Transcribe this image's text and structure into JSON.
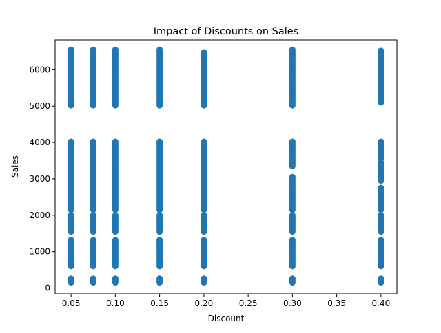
{
  "chart_data": {
    "type": "scatter",
    "title": "Impact of Discounts on Sales",
    "xlabel": "Discount",
    "ylabel": "Sales",
    "xlim": [
      0.032,
      0.418
    ],
    "ylim": [
      -160,
      6820
    ],
    "xticks": [
      0.05,
      0.1,
      0.15,
      0.2,
      0.25,
      0.3,
      0.35,
      0.4
    ],
    "xtick_labels": [
      "0.05",
      "0.10",
      "0.15",
      "0.20",
      "0.25",
      "0.30",
      "0.35",
      "0.40"
    ],
    "yticks": [
      0,
      1000,
      2000,
      3000,
      4000,
      5000,
      6000
    ],
    "ytick_labels": [
      "0",
      "1000",
      "2000",
      "3000",
      "4000",
      "5000",
      "6000"
    ],
    "grid": false,
    "marker_color": "#1f77b4",
    "series": [
      {
        "x_values": [
          0.05,
          0.075,
          0.1,
          0.15,
          0.2,
          0.3,
          0.4
        ],
        "sales_ranges": [
          [
            [
              150,
              260
            ],
            [
              600,
              1320
            ],
            [
              1550,
              2000
            ],
            [
              2150,
              4020
            ],
            [
              5020,
              6550
            ]
          ],
          [
            [
              150,
              260
            ],
            [
              600,
              1320
            ],
            [
              1550,
              2000
            ],
            [
              2150,
              4020
            ],
            [
              5020,
              6550
            ]
          ],
          [
            [
              150,
              260
            ],
            [
              600,
              1320
            ],
            [
              1550,
              2000
            ],
            [
              2150,
              4020
            ],
            [
              5020,
              6550
            ]
          ],
          [
            [
              150,
              260
            ],
            [
              600,
              1320
            ],
            [
              1550,
              2000
            ],
            [
              2150,
              4020
            ],
            [
              5020,
              6550
            ]
          ],
          [
            [
              150,
              260
            ],
            [
              600,
              1320
            ],
            [
              1550,
              2000
            ],
            [
              2150,
              4020
            ],
            [
              5020,
              6480
            ]
          ],
          [
            [
              150,
              260
            ],
            [
              600,
              1320
            ],
            [
              1550,
              2000
            ],
            [
              2150,
              3050
            ],
            [
              3350,
              4020
            ],
            [
              5020,
              6550
            ]
          ],
          [
            [
              150,
              260
            ],
            [
              600,
              1320
            ],
            [
              1550,
              2000
            ],
            [
              2150,
              2750
            ],
            [
              2950,
              3450
            ],
            [
              3550,
              4020
            ],
            [
              5100,
              6520
            ]
          ]
        ]
      }
    ]
  }
}
